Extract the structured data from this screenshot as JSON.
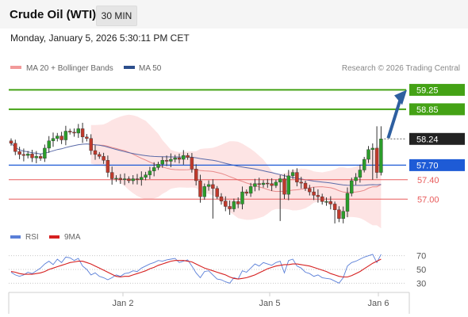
{
  "header": {
    "title": "Crude Oil (WTI)",
    "timeframe": "30 MIN"
  },
  "timestamp": "Monday, January 5, 2026 5:30:11 PM CET",
  "legend": {
    "ma20_bb": "MA 20 + Bollinger Bands",
    "ma50": "MA 50",
    "credit": "Research © 2026 Trading Central"
  },
  "colors": {
    "resistance": "#44a215",
    "pivot": "#1e5bd6",
    "support": "#e85b5b",
    "last": "#222222",
    "arrow": "#2e5fa0",
    "bollinger_fill": "#fde4e4",
    "ma20": "#e88a8a",
    "ma50": "#5a6aa8",
    "candle_up": "#2a9d2a",
    "candle_down": "#c0392b",
    "rsi": "#5a7fd8",
    "rsi_ma": "#d62020"
  },
  "chart_data": [
    {
      "type": "candlestick",
      "title": "Crude Oil (WTI)",
      "timeframe": "30 MIN",
      "x_tick_labels": [
        "Jan 2",
        "Jan 5",
        "Jan 6"
      ],
      "ylim": [
        56.45,
        59.55
      ],
      "levels": [
        {
          "label": "59.25",
          "value": 59.25,
          "kind": "resistance"
        },
        {
          "label": "58.85",
          "value": 58.85,
          "kind": "resistance"
        },
        {
          "label": "58.24",
          "value": 58.24,
          "kind": "last"
        },
        {
          "label": "57.70",
          "value": 57.7,
          "kind": "pivot"
        },
        {
          "label": "57.40",
          "value": 57.4,
          "kind": "support"
        },
        {
          "label": "57.00",
          "value": 57.0,
          "kind": "support"
        }
      ],
      "close": [
        58.15,
        57.98,
        57.92,
        57.9,
        57.93,
        57.85,
        57.88,
        57.84,
        58.05,
        58.2,
        58.25,
        58.3,
        58.22,
        58.4,
        58.38,
        58.36,
        58.45,
        58.28,
        58.25,
        58.0,
        57.92,
        57.88,
        57.8,
        57.55,
        57.42,
        57.43,
        57.4,
        57.42,
        57.38,
        57.42,
        57.4,
        57.45,
        57.5,
        57.58,
        57.65,
        57.72,
        57.8,
        57.78,
        57.82,
        57.85,
        57.82,
        57.9,
        57.86,
        57.62,
        57.38,
        57.05,
        57.26,
        57.3,
        57.22,
        57.05,
        56.96,
        56.85,
        56.8,
        56.95,
        56.9,
        57.15,
        57.12,
        57.26,
        57.32,
        57.3,
        57.33,
        57.32,
        57.28,
        57.35,
        57.42,
        57.1,
        57.48,
        57.55,
        57.35,
        57.33,
        57.22,
        57.15,
        57.08,
        57.05,
        56.95,
        56.95,
        56.9,
        56.78,
        56.6,
        56.75,
        57.12,
        57.38,
        57.45,
        57.6,
        57.82,
        58.02,
        58.05,
        57.55,
        58.24
      ],
      "rsi": {
        "ticks": [
          30,
          50,
          70
        ],
        "series": [
          {
            "name": "RSI",
            "values": [
              46,
              42,
              40,
              42,
              46,
              44,
              48,
              52,
              58,
              62,
              57,
              65,
              60,
              68,
              67,
              63,
              66,
              55,
              50,
              42,
              45,
              40,
              38,
              35,
              38,
              42,
              40,
              44,
              45,
              48,
              47,
              52,
              55,
              58,
              60,
              63,
              62,
              64,
              65,
              66,
              60,
              62,
              64,
              55,
              45,
              38,
              47,
              48,
              42,
              36,
              35,
              32,
              30,
              38,
              36,
              48,
              46,
              52,
              58,
              55,
              60,
              58,
              56,
              60,
              62,
              45,
              63,
              65,
              55,
              52,
              46,
              44,
              40,
              42,
              38,
              37,
              36,
              33,
              30,
              38,
              55,
              60,
              62,
              65,
              68,
              70,
              72,
              60,
              72
            ]
          },
          {
            "name": "9MA",
            "values": [
              47,
              46,
              44,
              43,
              43,
              43,
              44,
              45,
              47,
              50,
              52,
              54,
              56,
              58,
              60,
              61,
              62,
              62,
              60,
              58,
              55,
              52,
              49,
              46,
              43,
              40,
              39,
              40,
              40,
              42,
              44,
              46,
              48,
              51,
              53,
              56,
              58,
              60,
              62,
              63,
              63,
              63,
              62,
              61,
              58,
              55,
              52,
              50,
              48,
              46,
              44,
              42,
              39,
              37,
              36,
              37,
              38,
              40,
              42,
              45,
              48,
              51,
              53,
              55,
              56,
              57,
              57,
              58,
              58,
              57,
              56,
              55,
              53,
              51,
              49,
              47,
              44,
              42,
              40,
              39,
              39,
              41,
              44,
              47,
              51,
              55,
              59,
              62,
              65
            ]
          }
        ]
      }
    }
  ]
}
